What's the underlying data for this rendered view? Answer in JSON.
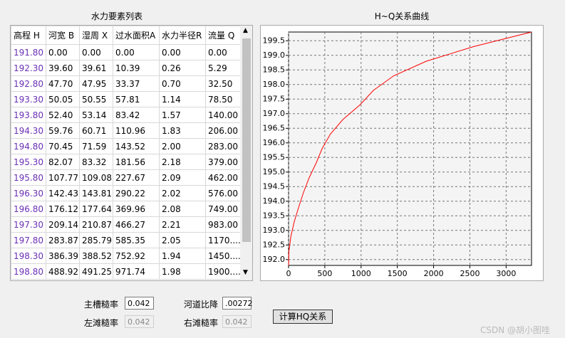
{
  "table": {
    "title": "水力要素列表",
    "headers": [
      "高程 H",
      "河宽 B",
      "湿周 X",
      "过水面积A",
      "水力半径R",
      "流量 Q"
    ],
    "rows": [
      [
        "191.80",
        "0.00",
        "0.00",
        "0.00",
        "0.00",
        "0.00"
      ],
      [
        "192.30",
        "39.60",
        "39.61",
        "10.39",
        "0.26",
        "5.29"
      ],
      [
        "192.80",
        "47.70",
        "47.95",
        "33.37",
        "0.70",
        "32.50"
      ],
      [
        "193.30",
        "50.05",
        "50.55",
        "57.81",
        "1.14",
        "78.50"
      ],
      [
        "193.80",
        "52.40",
        "53.14",
        "83.42",
        "1.57",
        "140.00"
      ],
      [
        "194.30",
        "59.76",
        "60.71",
        "110.96",
        "1.83",
        "206.00"
      ],
      [
        "194.80",
        "70.45",
        "71.59",
        "143.52",
        "2.00",
        "283.00"
      ],
      [
        "195.30",
        "82.07",
        "83.32",
        "181.56",
        "2.18",
        "379.00"
      ],
      [
        "195.80",
        "107.77",
        "109.08",
        "227.67",
        "2.09",
        "462.00"
      ],
      [
        "196.30",
        "142.43",
        "143.81",
        "290.22",
        "2.02",
        "576.00"
      ],
      [
        "196.80",
        "176.12",
        "177.64",
        "369.96",
        "2.08",
        "749.00"
      ],
      [
        "197.30",
        "209.14",
        "210.87",
        "466.27",
        "2.21",
        "983.00"
      ],
      [
        "197.80",
        "283.87",
        "285.79",
        "585.35",
        "2.05",
        "1170...."
      ],
      [
        "198.30",
        "386.39",
        "388.52",
        "752.92",
        "1.94",
        "1450...."
      ],
      [
        "198.80",
        "488.92",
        "491.25",
        "971.74",
        "1.98",
        "1900...."
      ]
    ]
  },
  "form": {
    "fields": [
      {
        "label": "主槽糙率",
        "value": "0.042"
      },
      {
        "label": "河道比降",
        "value": ".00272"
      },
      {
        "label": "左滩糙率",
        "value": "0.042"
      },
      {
        "label": "右滩糙率",
        "value": "0.042"
      }
    ],
    "button": "计算HQ关系"
  },
  "watermark": "CSDN @胡小图哇",
  "chart_data": {
    "type": "line",
    "title": "H~Q关系曲线",
    "x": [
      0,
      5.29,
      32.5,
      78.5,
      140,
      206,
      283,
      379,
      462,
      576,
      749,
      983,
      1170,
      1450,
      1900,
      2550,
      3350
    ],
    "series": [
      {
        "color": "#ff0000",
        "values": [
          191.8,
          192.3,
          192.8,
          193.3,
          193.8,
          194.3,
          194.8,
          195.3,
          195.8,
          196.3,
          196.8,
          197.3,
          197.8,
          198.3,
          198.8,
          199.3,
          199.8
        ]
      }
    ],
    "xlim": [
      0,
      3350
    ],
    "xticks": [
      0,
      500,
      1000,
      1500,
      2000,
      2500,
      3000
    ],
    "ylim": [
      191.8,
      199.8
    ],
    "yticks": [
      {
        "value": 192,
        "label": "192.0"
      },
      {
        "value": 192.5,
        "label": "192.5"
      },
      {
        "value": 193,
        "label": "193.0"
      },
      {
        "value": 193.5,
        "label": "193.5"
      },
      {
        "value": 194,
        "label": "194.0"
      },
      {
        "value": 194.5,
        "label": "194.5"
      },
      {
        "value": 195,
        "label": "195.0"
      },
      {
        "value": 195.5,
        "label": "195.5"
      },
      {
        "value": 196,
        "label": "196.0"
      },
      {
        "value": 196.5,
        "label": "196.5"
      },
      {
        "value": 197,
        "label": "197.0"
      },
      {
        "value": 197.5,
        "label": "197.5"
      },
      {
        "value": 198,
        "label": "198.0"
      },
      {
        "value": 198.5,
        "label": "198.5"
      },
      {
        "value": 199,
        "label": "199.0"
      },
      {
        "value": 199.5,
        "label": "199.5"
      }
    ],
    "grid": true
  }
}
